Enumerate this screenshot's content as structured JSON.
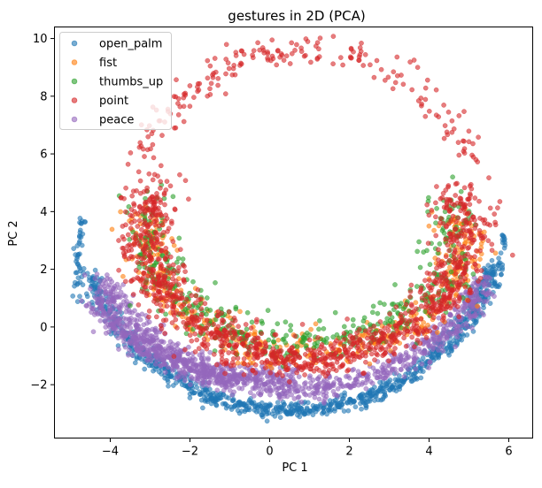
{
  "chart_data": {
    "type": "scatter",
    "title": "gestures in 2D (PCA)",
    "xlabel": "PC 1",
    "ylabel": "PC 2",
    "xlim": [
      -5.4,
      6.6
    ],
    "ylim": [
      -3.85,
      10.4
    ],
    "xticks": [
      -4,
      -2,
      0,
      2,
      4,
      6
    ],
    "yticks": [
      -2,
      0,
      2,
      4,
      6,
      8,
      10
    ],
    "xtick_labels": [
      "−4",
      "−2",
      "0",
      "2",
      "4",
      "6"
    ],
    "ytick_labels": [
      "−2",
      "0",
      "2",
      "4",
      "6",
      "8",
      "10"
    ],
    "grid": false,
    "legend_position": "top-left",
    "marker_alpha": 0.6,
    "series": [
      {
        "name": "open_palm",
        "color": "#1f77b4"
      },
      {
        "name": "fist",
        "color": "#ff7f0e"
      },
      {
        "name": "thumbs_up",
        "color": "#2ca02c"
      },
      {
        "name": "point",
        "color": "#d62728"
      },
      {
        "name": "peace",
        "color": "#9467bd"
      }
    ],
    "structures": [
      {
        "series": "open_palm",
        "shape": "outer arc",
        "cx": 0.5,
        "cy": 4.3,
        "rx": 5.35,
        "ry": 7.2,
        "t_from": 200,
        "t_to": 343,
        "spread": 0.14,
        "n": 900
      },
      {
        "series": "open_palm",
        "shape": "left edge",
        "x_from": -4.9,
        "x_to": -4.7,
        "y_from": 0.8,
        "y_to": 3.8,
        "n": 40
      },
      {
        "series": "open_palm",
        "shape": "right edge",
        "x_from": 5.7,
        "x_to": 5.85,
        "y_from": 1.4,
        "y_to": 3.3,
        "n": 25
      },
      {
        "series": "peace",
        "shape": "middle arc",
        "cx": 0.6,
        "cy": 4.3,
        "rx": 5.25,
        "ry": 6.45,
        "t_from": 205,
        "t_to": 335,
        "spread": 0.2,
        "n": 900
      },
      {
        "series": "peace",
        "shape": "inner arc",
        "cx": -0.5,
        "cy": 3.4,
        "rx": 4.5,
        "ry": 5.1,
        "t_from": 210,
        "t_to": 285,
        "spread": 0.18,
        "n": 400
      },
      {
        "series": "point",
        "shape": "ring",
        "cx": 0.9,
        "cy": 3.4,
        "rx": 4.0,
        "ry": 4.5,
        "t_from": 160,
        "t_to": 380,
        "spread": 0.35,
        "n": 1200
      },
      {
        "series": "point",
        "shape": "sparse upper arc",
        "cx": 0.9,
        "cy": 3.2,
        "rx": 4.6,
        "ry": 6.4,
        "t_from": 22,
        "t_to": 158,
        "spread": 0.25,
        "n": 200
      },
      {
        "series": "fist",
        "shape": "ring",
        "cx": 0.9,
        "cy": 3.2,
        "rx": 3.95,
        "ry": 4.1,
        "t_from": 170,
        "t_to": 370,
        "spread": 0.3,
        "n": 450
      },
      {
        "series": "thumbs_up",
        "shape": "ring",
        "cx": 0.8,
        "cy": 3.4,
        "rx": 3.85,
        "ry": 4.0,
        "t_from": 165,
        "t_to": 375,
        "spread": 0.35,
        "n": 450
      }
    ]
  }
}
